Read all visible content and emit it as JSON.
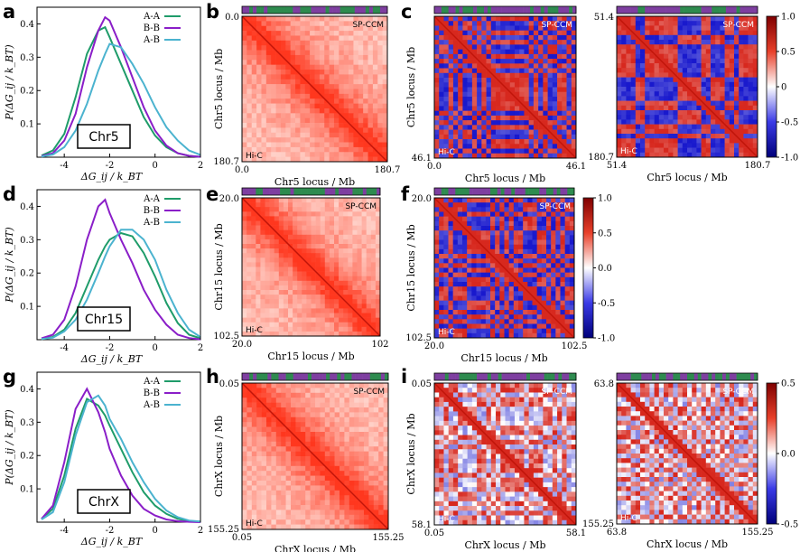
{
  "panels": [
    "a",
    "b",
    "c",
    "d",
    "e",
    "f",
    "g",
    "h",
    "i"
  ],
  "colors": {
    "AA": "#1f9c6a",
    "BB": "#8a1ec8",
    "AB": "#4bb3cf",
    "green": "#2e8b4f",
    "purple": "#7e3fa0",
    "red": "#d7301f",
    "blue": "#1a1acc"
  },
  "row_titles": [
    "Chr5",
    "Chr15",
    "ChrX"
  ],
  "tags": {
    "sim": "SP-CCM",
    "exp": "Hi-C"
  },
  "chart_data": [
    {
      "type": "line",
      "panel": "a",
      "title": "Chr5",
      "xlabel": "ΔG_ij / k_BT",
      "ylabel": "P(ΔG_ij / k_BT)",
      "xlim": [
        -5.2,
        2
      ],
      "ylim": [
        0,
        0.45
      ],
      "xticks": [
        "-4",
        "-2",
        "0",
        "2"
      ],
      "yticks": [
        "0.1",
        "0.2",
        "0.3",
        "0.4"
      ],
      "x": [
        -5,
        -4.5,
        -4,
        -3.5,
        -3,
        -2.5,
        -2.2,
        -2,
        -1.5,
        -1,
        -0.5,
        0,
        0.5,
        1,
        1.5,
        2
      ],
      "series": [
        {
          "name": "A-A",
          "values": [
            0.005,
            0.02,
            0.07,
            0.18,
            0.31,
            0.38,
            0.39,
            0.36,
            0.28,
            0.2,
            0.12,
            0.065,
            0.03,
            0.012,
            0.004,
            0.001
          ]
        },
        {
          "name": "B-B",
          "values": [
            0.003,
            0.012,
            0.05,
            0.13,
            0.27,
            0.38,
            0.42,
            0.41,
            0.33,
            0.24,
            0.15,
            0.08,
            0.035,
            0.012,
            0.004,
            0.001
          ]
        },
        {
          "name": "A-B",
          "values": [
            0.002,
            0.008,
            0.03,
            0.08,
            0.16,
            0.26,
            0.31,
            0.34,
            0.33,
            0.28,
            0.22,
            0.15,
            0.09,
            0.05,
            0.02,
            0.007
          ]
        }
      ]
    },
    {
      "type": "line",
      "panel": "d",
      "title": "Chr15",
      "xlabel": "ΔG_ij / k_BT",
      "ylabel": "P(ΔG_ij / k_BT)",
      "xlim": [
        -5.2,
        2
      ],
      "ylim": [
        0,
        0.45
      ],
      "xticks": [
        "-4",
        "-2",
        "0",
        "2"
      ],
      "yticks": [
        "0.1",
        "0.2",
        "0.3",
        "0.4"
      ],
      "x": [
        -5,
        -4.5,
        -4,
        -3.5,
        -3,
        -2.5,
        -2.2,
        -2,
        -1.5,
        -1,
        -0.5,
        0,
        0.5,
        1,
        1.5,
        2
      ],
      "series": [
        {
          "name": "A-A",
          "values": [
            0.002,
            0.008,
            0.03,
            0.08,
            0.16,
            0.24,
            0.28,
            0.3,
            0.32,
            0.31,
            0.26,
            0.19,
            0.11,
            0.05,
            0.015,
            0.004
          ]
        },
        {
          "name": "B-B",
          "values": [
            0.004,
            0.015,
            0.06,
            0.16,
            0.3,
            0.4,
            0.42,
            0.38,
            0.3,
            0.23,
            0.15,
            0.09,
            0.045,
            0.015,
            0.005,
            0.001
          ]
        },
        {
          "name": "A-B",
          "values": [
            0.002,
            0.006,
            0.025,
            0.06,
            0.12,
            0.2,
            0.25,
            0.28,
            0.33,
            0.33,
            0.3,
            0.24,
            0.15,
            0.08,
            0.03,
            0.008
          ]
        }
      ]
    },
    {
      "type": "line",
      "panel": "g",
      "title": "ChrX",
      "xlabel": "ΔG_ij / k_BT",
      "ylabel": "P(ΔG_ij / k_BT)",
      "xlim": [
        -5.2,
        2
      ],
      "ylim": [
        0,
        0.45
      ],
      "xticks": [
        "-4",
        "-2",
        "0",
        "2"
      ],
      "yticks": [
        "0.1",
        "0.2",
        "0.3",
        "0.4"
      ],
      "x": [
        -5,
        -4.5,
        -4,
        -3.5,
        -3,
        -2.5,
        -2.2,
        -2,
        -1.5,
        -1,
        -0.5,
        0,
        0.5,
        1,
        1.5,
        2
      ],
      "series": [
        {
          "name": "A-A",
          "values": [
            0.01,
            0.04,
            0.14,
            0.28,
            0.37,
            0.35,
            0.32,
            0.29,
            0.22,
            0.15,
            0.09,
            0.05,
            0.025,
            0.01,
            0.004,
            0.001
          ]
        },
        {
          "name": "B-B",
          "values": [
            0.01,
            0.05,
            0.18,
            0.34,
            0.4,
            0.33,
            0.27,
            0.22,
            0.14,
            0.08,
            0.04,
            0.02,
            0.008,
            0.003,
            0.001,
            0
          ]
        },
        {
          "name": "A-B",
          "values": [
            0.008,
            0.03,
            0.12,
            0.26,
            0.36,
            0.38,
            0.35,
            0.31,
            0.25,
            0.18,
            0.12,
            0.07,
            0.035,
            0.015,
            0.005,
            0.002
          ]
        }
      ]
    },
    {
      "type": "heatmap",
      "panel": "b",
      "mode": "counts",
      "xlabel": "Chr5 locus / Mb",
      "ylabel": "Chr5 locus / Mb",
      "xticks": [
        "0.0",
        "180.7"
      ],
      "yticks": [
        "0.0",
        "180.7"
      ]
    },
    {
      "type": "heatmap",
      "panel": "c-left",
      "mode": "corr",
      "xlabel": "Chr5 locus / Mb",
      "ylabel": "Chr5 locus / Mb",
      "xticks": [
        "0.0",
        "46.1"
      ],
      "yticks": [
        "46.1"
      ]
    },
    {
      "type": "heatmap",
      "panel": "c-right",
      "mode": "corr",
      "xlabel": "Chr5 locus / Mb",
      "xticks": [
        "51.4",
        "180.7"
      ],
      "yticks": [
        "51.4",
        "180.7"
      ],
      "colorbar": {
        "min": -1.0,
        "max": 1.0,
        "ticks": [
          "1.0",
          "0.5",
          "0",
          "-0.5",
          "-1.0"
        ]
      }
    },
    {
      "type": "heatmap",
      "panel": "e",
      "mode": "counts",
      "xlabel": "Chr15 locus / Mb",
      "ylabel": "Chr15 locus / Mb",
      "xticks": [
        "20.0",
        "102"
      ],
      "yticks": [
        "20.0",
        "102.5"
      ]
    },
    {
      "type": "heatmap",
      "panel": "f",
      "mode": "corr",
      "xlabel": "Chr15 locus / Mb",
      "ylabel": "Chr15 locus / Mb",
      "xticks": [
        "20.0",
        "102.5"
      ],
      "yticks": [
        "20.0",
        "102.5"
      ],
      "colorbar": {
        "min": -1.0,
        "max": 1.0,
        "ticks": [
          "1.0",
          "0.5",
          "0.0",
          "-0.5",
          "-1.0"
        ]
      }
    },
    {
      "type": "heatmap",
      "panel": "h",
      "mode": "counts",
      "xlabel": "ChrX locus / Mb",
      "ylabel": "ChrX locus / Mb",
      "xticks": [
        "0.05",
        "155.25"
      ],
      "yticks": [
        "0.05",
        "155.25"
      ]
    },
    {
      "type": "heatmap",
      "panel": "i-left",
      "mode": "corr-soft",
      "xlabel": "ChrX locus / Mb",
      "ylabel": "ChrX locus / Mb",
      "xticks": [
        "0.05",
        "58.1"
      ],
      "yticks": [
        "0.05",
        "58.1"
      ]
    },
    {
      "type": "heatmap",
      "panel": "i-right",
      "mode": "corr-soft",
      "xlabel": "ChrX locus / Mb",
      "xticks": [
        "63.8",
        "155.25"
      ],
      "yticks": [
        "63.8",
        "155.25"
      ],
      "colorbar": {
        "min": -0.5,
        "max": 0.5,
        "ticks": [
          "0.5",
          "0.0",
          "-0.5"
        ]
      }
    }
  ]
}
